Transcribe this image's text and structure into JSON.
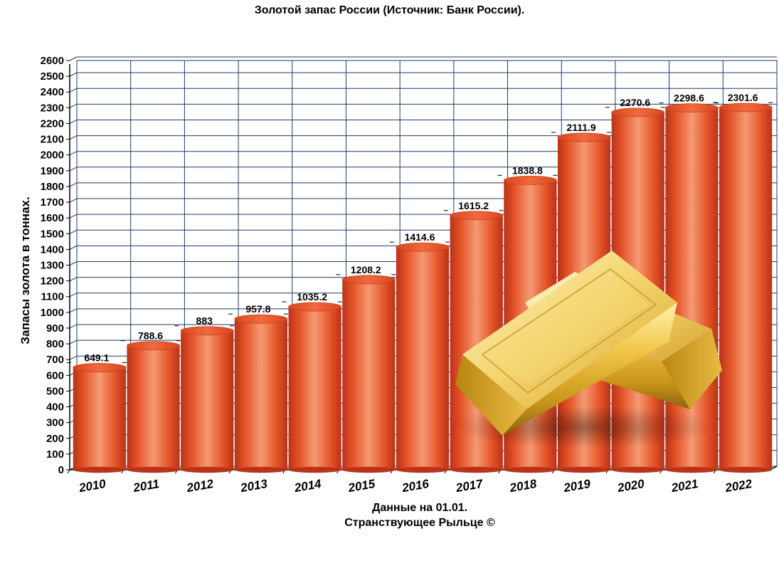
{
  "chart_data": {
    "type": "bar",
    "title": "Золотой запас России (Источник: Банк России).",
    "ylabel": "Запасы золота в тоннах.",
    "xlabel": "",
    "categories": [
      "2010",
      "2011",
      "2012",
      "2013",
      "2014",
      "2015",
      "2016",
      "2017",
      "2018",
      "2019",
      "2020",
      "2021",
      "2022"
    ],
    "values": [
      649.1,
      788.6,
      883,
      957.8,
      1035.2,
      1208.2,
      1414.6,
      1615.2,
      1838.8,
      2111.9,
      2270.6,
      2298.6,
      2301.6
    ],
    "value_labels": [
      "649.1",
      "788.6",
      "883",
      "957.8",
      "1035.2",
      "1208.2",
      "1414.6",
      "1615.2",
      "1838.8",
      "2111.9",
      "2270.6",
      "2298.6",
      "2301.6"
    ],
    "ylim": [
      0,
      2600
    ],
    "ytick_step": 100,
    "grid": true,
    "bar_color": "#e8542a",
    "grid_color": "#1f3a66",
    "notes": [
      "Данные на 01.01.",
      "Странствующее Рыльце ©"
    ],
    "decoration": "gold-bars-image"
  }
}
